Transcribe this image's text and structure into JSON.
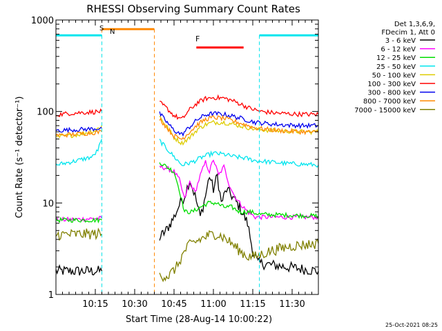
{
  "chart_data": {
    "type": "line",
    "title": "RHESSI Observing Summary Count Rates",
    "xlabel": "Start Time (28-Aug-14 10:00:22)",
    "ylabel": "Count Rate (s⁻¹ detector⁻¹)",
    "yscale": "log",
    "xlim_minutes": [
      0,
      100
    ],
    "ylim": [
      1,
      1000
    ],
    "x_ticks": [
      {
        "minute": 15,
        "label": "10:15"
      },
      {
        "minute": 30,
        "label": "10:30"
      },
      {
        "minute": 45,
        "label": "10:45"
      },
      {
        "minute": 60,
        "label": "11:00"
      },
      {
        "minute": 75,
        "label": "11:15"
      },
      {
        "minute": 90,
        "label": "11:30"
      }
    ],
    "y_ticks": [
      {
        "value": 1,
        "label": "1"
      },
      {
        "value": 10,
        "label": "10"
      },
      {
        "value": 100,
        "label": "100"
      },
      {
        "value": 1000,
        "label": "1000"
      }
    ],
    "legend_header": [
      "Det 1,3,6,9,",
      "FDecim 1, Att 0"
    ],
    "series": [
      {
        "name": "3 - 6 keV",
        "color": "#000000",
        "segments": [
          [
            [
              0,
              1.8
            ],
            [
              17.5,
              1.8
            ]
          ],
          [
            [
              39.5,
              4.2
            ],
            [
              42,
              5.0
            ],
            [
              45,
              7.0
            ],
            [
              47,
              9.5
            ],
            [
              49,
              12
            ],
            [
              51,
              18
            ],
            [
              53,
              12
            ],
            [
              55,
              7
            ],
            [
              57,
              12
            ],
            [
              58.5,
              20
            ],
            [
              60,
              14
            ],
            [
              61.5,
              20
            ],
            [
              63,
              10
            ],
            [
              65,
              14
            ],
            [
              67,
              12
            ],
            [
              70,
              9
            ],
            [
              73,
              6
            ],
            [
              75,
              3
            ],
            [
              77,
              2.2
            ],
            [
              100,
              1.8
            ]
          ]
        ]
      },
      {
        "name": "6 - 12 keV",
        "color": "#ff00ff",
        "segments": [
          [
            [
              0,
              6.5
            ],
            [
              17.5,
              6.8
            ]
          ],
          [
            [
              39.5,
              25
            ],
            [
              42,
              24
            ],
            [
              45,
              22
            ],
            [
              47,
              18
            ],
            [
              49,
              11
            ],
            [
              51,
              17
            ],
            [
              53,
              13
            ],
            [
              55,
              20
            ],
            [
              57,
              28
            ],
            [
              58.5,
              22
            ],
            [
              60,
              30
            ],
            [
              62,
              20
            ],
            [
              64,
              25
            ],
            [
              66,
              16
            ],
            [
              68,
              12
            ],
            [
              70,
              10
            ],
            [
              73,
              8
            ],
            [
              76,
              7
            ],
            [
              100,
              7
            ]
          ]
        ]
      },
      {
        "name": "12 - 25 keV",
        "color": "#00dd00",
        "segments": [
          [
            [
              0,
              6.5
            ],
            [
              17.5,
              6.5
            ]
          ],
          [
            [
              39.5,
              28
            ],
            [
              42,
              25
            ],
            [
              45,
              22
            ],
            [
              47,
              14
            ],
            [
              49,
              8
            ],
            [
              52,
              8
            ],
            [
              55,
              9
            ],
            [
              58,
              10
            ],
            [
              61,
              10
            ],
            [
              64,
              9
            ],
            [
              67,
              9
            ],
            [
              70,
              8
            ],
            [
              74,
              8
            ],
            [
              78,
              7.5
            ],
            [
              100,
              7.2
            ]
          ]
        ]
      },
      {
        "name": "25 - 50 keV",
        "color": "#00e5ee",
        "segments": [
          [
            [
              0,
              26
            ],
            [
              8,
              29
            ],
            [
              14,
              32
            ],
            [
              16,
              38
            ],
            [
              17.5,
              50
            ]
          ],
          [
            [
              39.5,
              48
            ],
            [
              42,
              40
            ],
            [
              45,
              32
            ],
            [
              48,
              26
            ],
            [
              52,
              28
            ],
            [
              56,
              32
            ],
            [
              60,
              35
            ],
            [
              64,
              34
            ],
            [
              68,
              32
            ],
            [
              72,
              31
            ],
            [
              76,
              29
            ],
            [
              82,
              28
            ],
            [
              88,
              27
            ],
            [
              94,
              26.5
            ],
            [
              100,
              26
            ]
          ]
        ]
      },
      {
        "name": "50 - 100 keV",
        "color": "#ddcc00",
        "segments": [
          [
            [
              0,
              52
            ],
            [
              10,
              57
            ],
            [
              15,
              62
            ],
            [
              17.5,
              70
            ]
          ],
          [
            [
              39.5,
              88
            ],
            [
              42,
              70
            ],
            [
              45,
              52
            ],
            [
              48,
              45
            ],
            [
              51,
              52
            ],
            [
              54,
              64
            ],
            [
              57,
              72
            ],
            [
              60,
              76
            ],
            [
              64,
              76
            ],
            [
              68,
              72
            ],
            [
              72,
              68
            ],
            [
              76,
              64
            ],
            [
              82,
              62
            ],
            [
              88,
              61
            ],
            [
              94,
              60
            ],
            [
              100,
              60
            ]
          ]
        ]
      },
      {
        "name": "100 - 300 keV",
        "color": "#ff0000",
        "segments": [
          [
            [
              0,
              92
            ],
            [
              6,
              96
            ],
            [
              12,
              98
            ],
            [
              17.5,
              100
            ]
          ],
          [
            [
              39.5,
              125
            ],
            [
              42,
              110
            ],
            [
              45,
              90
            ],
            [
              48,
              82
            ],
            [
              51,
              105
            ],
            [
              54,
              125
            ],
            [
              57,
              138
            ],
            [
              60,
              142
            ],
            [
              64,
              140
            ],
            [
              67,
              132
            ],
            [
              70,
              122
            ],
            [
              74,
              108
            ],
            [
              78,
              100
            ],
            [
              84,
              96
            ],
            [
              90,
              94
            ],
            [
              95,
              93
            ],
            [
              100,
              93
            ]
          ]
        ]
      },
      {
        "name": "300 - 800 keV",
        "color": "#0000ee",
        "segments": [
          [
            [
              0,
              62
            ],
            [
              6,
              63
            ],
            [
              12,
              64
            ],
            [
              17.5,
              66
            ]
          ],
          [
            [
              39.5,
              95
            ],
            [
              42,
              78
            ],
            [
              45,
              62
            ],
            [
              48,
              56
            ],
            [
              51,
              68
            ],
            [
              54,
              82
            ],
            [
              57,
              92
            ],
            [
              60,
              95
            ],
            [
              64,
              93
            ],
            [
              68,
              88
            ],
            [
              72,
              82
            ],
            [
              76,
              76
            ],
            [
              82,
              73
            ],
            [
              88,
              71
            ],
            [
              94,
              70
            ],
            [
              100,
              70
            ]
          ]
        ]
      },
      {
        "name": "800 - 7000 keV",
        "color": "#ff8800",
        "segments": [
          [
            [
              0,
              55
            ],
            [
              6,
              56
            ],
            [
              12,
              58
            ],
            [
              17.5,
              60
            ]
          ],
          [
            [
              39.5,
              84
            ],
            [
              42,
              68
            ],
            [
              45,
              54
            ],
            [
              48,
              50
            ],
            [
              51,
              60
            ],
            [
              54,
              72
            ],
            [
              57,
              82
            ],
            [
              60,
              86
            ],
            [
              64,
              84
            ],
            [
              68,
              78
            ],
            [
              72,
              72
            ],
            [
              76,
              66
            ],
            [
              82,
              63
            ],
            [
              88,
              61
            ],
            [
              94,
              60
            ],
            [
              100,
              59
            ]
          ]
        ]
      },
      {
        "name": "7000 - 15000 keV",
        "color": "#808000",
        "segments": [
          [
            [
              0,
              4.5
            ],
            [
              17.5,
              4.6
            ]
          ],
          [
            [
              39.5,
              1.6
            ],
            [
              43,
              1.6
            ],
            [
              46,
              2.0
            ],
            [
              48,
              2.6
            ],
            [
              50,
              3.3
            ],
            [
              52,
              3.6
            ],
            [
              55,
              4.0
            ],
            [
              58,
              4.4
            ],
            [
              61,
              4.6
            ],
            [
              64,
              4.2
            ],
            [
              67,
              3.6
            ],
            [
              70,
              3.0
            ],
            [
              73,
              2.6
            ],
            [
              76,
              2.6
            ],
            [
              82,
              3.0
            ],
            [
              90,
              3.4
            ],
            [
              100,
              3.6
            ]
          ]
        ]
      }
    ],
    "state_bars": [
      {
        "label": "S",
        "color": "#ff8800",
        "start": 17.5,
        "end": 37.5,
        "level": 795
      },
      {
        "label": "N",
        "color": "#00e5ee",
        "start": 0,
        "end": 17.5,
        "level": 680
      },
      {
        "label": "N",
        "color": "#00e5ee",
        "start": 77.5,
        "end": 100,
        "level": 680
      },
      {
        "label": "F",
        "color": "#ff0000",
        "start": 53.5,
        "end": 71.5,
        "level": 500
      }
    ],
    "text_labels": {
      "S": "S",
      "N": "N",
      "F": "F"
    },
    "footer_timestamp": "25-Oct-2021 08:25"
  }
}
